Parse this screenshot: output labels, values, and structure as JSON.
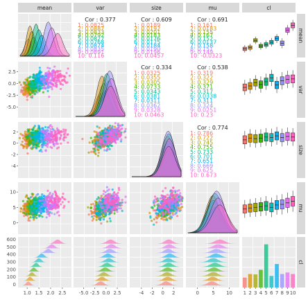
{
  "chart_data": {
    "type": "pairs",
    "variables": [
      "mean",
      "var",
      "size",
      "mu",
      "cl"
    ],
    "group_levels": [
      "1",
      "2",
      "3",
      "4",
      "5",
      "6",
      "7",
      "8",
      "9",
      "10"
    ],
    "group_colors": [
      "#F8766D",
      "#D89000",
      "#A3A500",
      "#39B600",
      "#00BF7D",
      "#00BFC4",
      "#00B0F6",
      "#9590FF",
      "#E76BF3",
      "#FF62BC"
    ],
    "x_ticks": {
      "mean": [
        "1.0",
        "1.5",
        "2.0",
        "2.5"
      ],
      "var": [
        "-5.0",
        "-2.5",
        "0.0",
        "2.5"
      ],
      "size": [
        "-4",
        "-2",
        "0",
        "2"
      ],
      "mu": [
        "0",
        "5",
        "10"
      ],
      "cl": [
        "1",
        "2",
        "3",
        "4",
        "5",
        "6",
        "7",
        "8",
        "9",
        "10"
      ]
    },
    "y_ticks": {
      "var": [
        "2.5",
        "0.0",
        "-2.5",
        "-5.0"
      ],
      "size": [
        "2",
        "0",
        "-2",
        "-4"
      ],
      "mu": [
        "10",
        "5",
        "0"
      ],
      "cl": [
        "600",
        "500",
        "400",
        "300",
        "200",
        "100",
        "0"
      ]
    },
    "x_ranges": {
      "mean": [
        0.7,
        2.8
      ],
      "var": [
        -6.8,
        4.2
      ],
      "size": [
        -5.8,
        3.4
      ],
      "mu": [
        -3,
        12.5
      ]
    },
    "correlations": [
      {
        "pair": [
          "mean",
          "var"
        ],
        "overall": "Cor : 0.377",
        "groups": [
          "1: 0.0825",
          "2: 0.0887",
          "3: 0.0833",
          "4: 0.0792",
          "5: 0.0827",
          "6: 0.0768",
          "7: 0.0874",
          "8: 0.0835",
          "9: 0.0891",
          "10: 0.116"
        ]
      },
      {
        "pair": [
          "mean",
          "size"
        ],
        "overall": "Cor : 0.609",
        "groups": [
          "1: 0.0189",
          "2: 0.0192",
          "3: 0.0201",
          "4: 0.0183",
          "5: 0.0176",
          "6: 0.0175",
          "7: 0.0184",
          "8: 0.0190",
          "9: 0.0196",
          "10: 0.0457"
        ]
      },
      {
        "pair": [
          "mean",
          "mu"
        ],
        "overall": "Cor : 0.691",
        "groups": [
          "1: 0.161",
          "2: 0.0183",
          "3: 0.155",
          "4: 0.167",
          "5: 0.152",
          "6: 0.0137",
          "7: 0.158",
          "8: 0.151",
          "9: 0.149",
          "10: -0.0323"
        ]
      },
      {
        "pair": [
          "var",
          "size"
        ],
        "overall": "Cor : 0.334",
        "groups": [
          "1: 0.0325",
          "2: 0.0355",
          "3: 0.0305",
          "4: 0.0733",
          "5: 0.0343",
          "6: 0.0381",
          "7: 0.0311",
          "8: 0.0362",
          "9: 0.0328",
          "10: 0.0463"
        ]
      },
      {
        "pair": [
          "var",
          "mu"
        ],
        "overall": "Cor : 0.538",
        "groups": [
          "1: 0.319",
          "2: 0.322",
          "3: 0.329",
          "4: 0.371",
          "5: 0.317",
          "6: 0.0338",
          "7: 0.311",
          "8: 0.324",
          "9: 0.0251",
          "10: 0.23"
        ]
      },
      {
        "pair": [
          "size",
          "mu"
        ],
        "overall": "Cor : 0.774",
        "groups": [
          "1: 0.786",
          "2: 0.722",
          "3: 0.745",
          "4: 0.755",
          "5: 0.733",
          "6: 0.701",
          "7: 0.651",
          "8: 0.669",
          "9: 0.625",
          "10: 0.673"
        ]
      }
    ],
    "group_means": {
      "mean": [
        1.05,
        1.12,
        1.2,
        1.28,
        1.38,
        1.5,
        1.62,
        1.9,
        2.05,
        2.3
      ],
      "var": [
        -1.2,
        -0.9,
        -0.5,
        -0.2,
        0.2,
        0.6,
        0.4,
        0.8,
        1.2,
        1.0
      ],
      "size": [
        0.6,
        0.9,
        0.8,
        0.9,
        1.1,
        1.0,
        1.3,
        1.0,
        1.2,
        1.1
      ],
      "mu": [
        4.5,
        4.8,
        5.0,
        5.2,
        5.5,
        5.0,
        5.8,
        6.0,
        6.5,
        7.0
      ]
    },
    "group_sds": {
      "mean": [
        0.15,
        0.15,
        0.15,
        0.15,
        0.16,
        0.17,
        0.18,
        0.2,
        0.2,
        0.22
      ],
      "var": [
        1.2,
        1.2,
        1.2,
        1.3,
        1.3,
        1.3,
        1.3,
        1.4,
        1.4,
        1.4
      ],
      "size": [
        1.2,
        1.2,
        1.2,
        1.2,
        1.2,
        1.2,
        1.2,
        1.2,
        1.2,
        1.2
      ],
      "mu": [
        2.2,
        2.2,
        2.3,
        2.3,
        2.4,
        2.4,
        2.4,
        2.5,
        2.5,
        2.6
      ]
    },
    "cl_counts": [
      130,
      175,
      170,
      230,
      560,
      150,
      305,
      175,
      195,
      175
    ],
    "cl_boxplot_means": {
      "mean": [
        1.05,
        1.12,
        1.5,
        1.2,
        1.28,
        1.4,
        1.6,
        1.35,
        2.05,
        2.3
      ],
      "var": [
        -0.8,
        -0.5,
        0.2,
        -0.2,
        0.4,
        1.2,
        -0.3,
        0.6,
        0.9,
        1.0
      ],
      "size": [
        0.6,
        0.9,
        0.8,
        0.9,
        1.1,
        1.0,
        1.3,
        1.0,
        1.2,
        1.1
      ],
      "mu": [
        4.5,
        4.8,
        5.0,
        5.2,
        5.5,
        5.0,
        5.8,
        6.0,
        6.5,
        7.0
      ]
    }
  }
}
